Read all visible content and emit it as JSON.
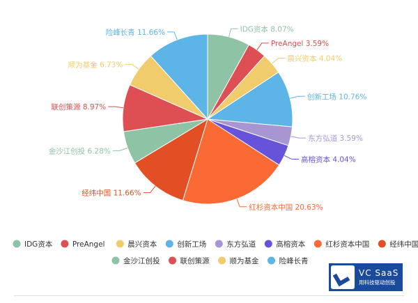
{
  "chart_data": {
    "type": "pie",
    "title": "",
    "legend_position": "bottom",
    "slices": [
      {
        "name": "IDG资本",
        "value": 8.07,
        "label": "IDG资本 8.07%",
        "color": "#8fc3a6"
      },
      {
        "name": "PreAngel",
        "value": 3.59,
        "label": "PreAngel 3.59%",
        "color": "#dd4f52"
      },
      {
        "name": "晨兴资本",
        "value": 4.04,
        "label": "晨兴资本 4.04%",
        "color": "#f0cc6c"
      },
      {
        "name": "创新工场",
        "value": 10.76,
        "label": "创新工场 10.76%",
        "color": "#5db4e6"
      },
      {
        "name": "东方弘道",
        "value": 3.59,
        "label": "东方弘道 3.59%",
        "color": "#a796d1"
      },
      {
        "name": "高榕资本",
        "value": 4.04,
        "label": "高榕资本 4.04%",
        "color": "#6753da"
      },
      {
        "name": "红杉资本中国",
        "value": 20.63,
        "label": "红杉资本中国 20.63%",
        "color": "#fa6a35"
      },
      {
        "name": "经纬中国",
        "value": 11.66,
        "label": "经纬中国 11.66%",
        "color": "#e24f24"
      },
      {
        "name": "金沙江创投",
        "value": 6.28,
        "label": "金沙江创投 6.28%",
        "color": "#8fc3a6"
      },
      {
        "name": "联创策源",
        "value": 8.97,
        "label": "联创策源 8.97%",
        "color": "#dd4f52"
      },
      {
        "name": "顺为基金",
        "value": 6.73,
        "label": "顺为基金 6.73%",
        "color": "#f0cc6c"
      },
      {
        "name": "险峰长青",
        "value": 11.66,
        "label": "险峰长青 11.66%",
        "color": "#5db4e6"
      }
    ]
  },
  "logo": {
    "title": "VC SaaS",
    "subtitle": "用科技驱动创投"
  }
}
